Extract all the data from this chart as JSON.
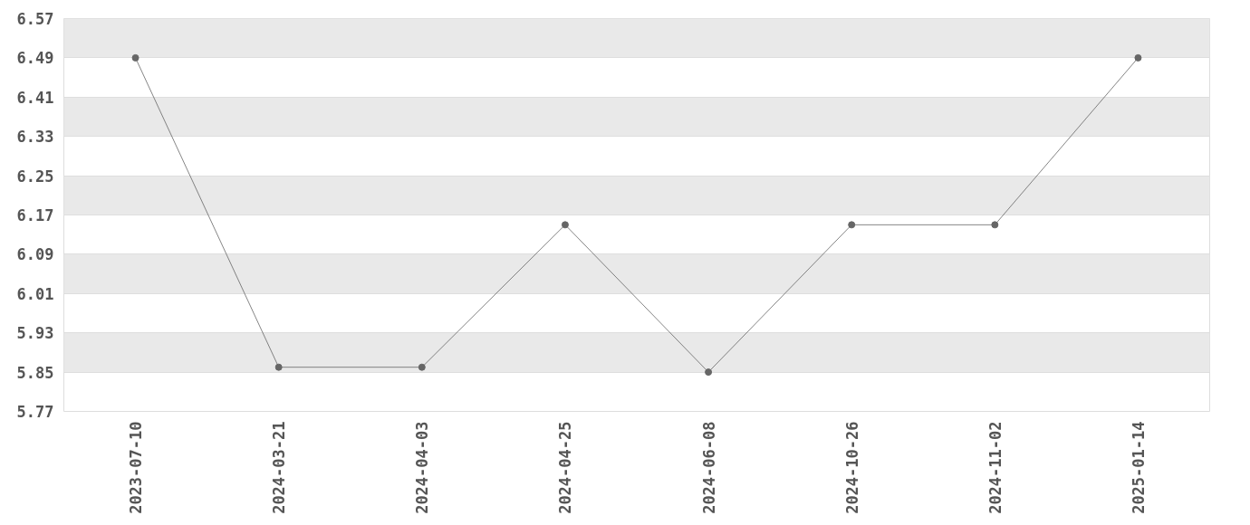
{
  "chart_data": {
    "type": "line",
    "categories": [
      "2023-07-10",
      "2024-03-21",
      "2024-04-03",
      "2024-04-25",
      "2024-06-08",
      "2024-10-26",
      "2024-11-02",
      "2025-01-14"
    ],
    "series": [
      {
        "color": "#666666",
        "values": [
          6.49,
          5.86,
          5.86,
          6.15,
          5.85,
          6.15,
          6.15,
          6.49
        ]
      }
    ],
    "ylim": [
      5.77,
      6.57
    ],
    "yticks": [
      5.77,
      5.85,
      5.93,
      6.01,
      6.09,
      6.17,
      6.25,
      6.33,
      6.41,
      6.49,
      6.57
    ],
    "grid": "y",
    "marker": "circle",
    "line_style": "solid"
  }
}
